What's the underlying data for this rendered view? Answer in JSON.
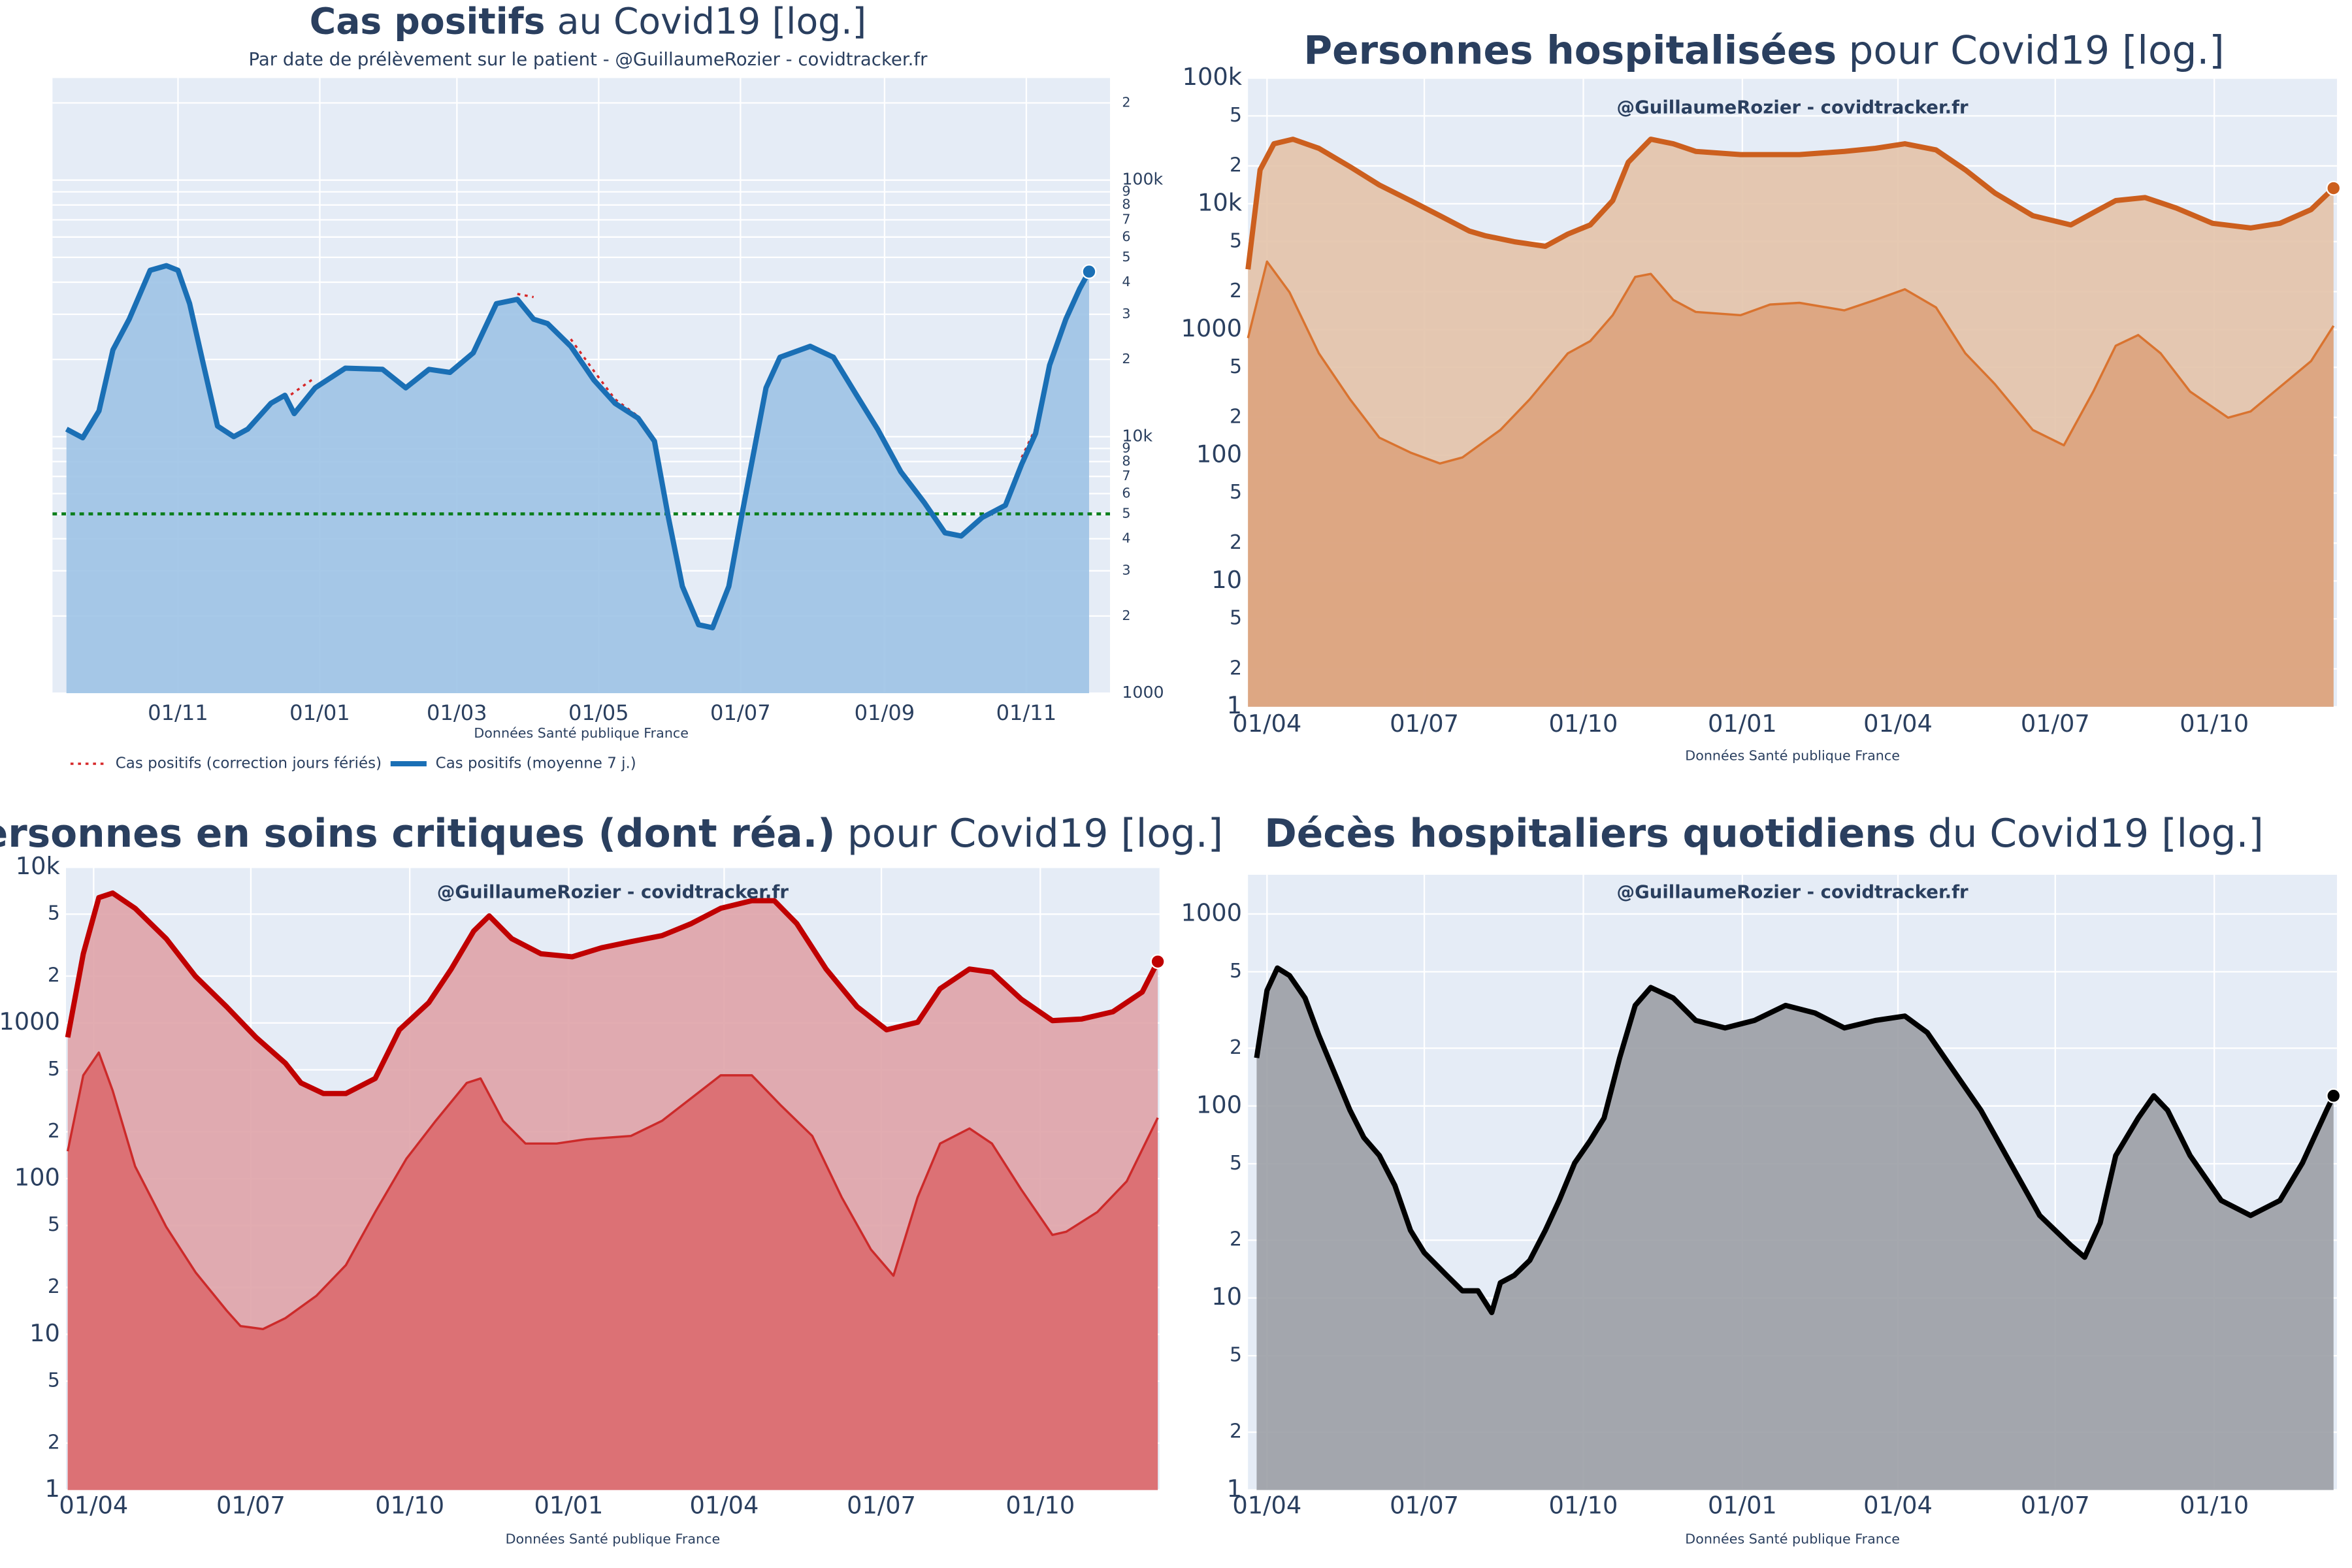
{
  "chart_data": [
    {
      "type": "area",
      "title_bold": "Cas positifs",
      "title": "au Covid19 [log.]",
      "subtitle": "Par date de prélèvement sur le patient - @GuillaumeRozier - covidtracker.fr",
      "source": "Données Santé publique France",
      "log_y": true,
      "grid": true,
      "yaxis_side": "right",
      "legend": "bottom-left",
      "xlim": [
        -54,
        401
      ],
      "xticks": [
        {
          "value": 0,
          "label": "01/11"
        },
        {
          "value": 61,
          "label": "01/01"
        },
        {
          "value": 120,
          "label": "01/03"
        },
        {
          "value": 181,
          "label": "01/05"
        },
        {
          "value": 242,
          "label": "01/07"
        },
        {
          "value": 304,
          "label": "01/09"
        },
        {
          "value": 365,
          "label": "01/11"
        }
      ],
      "ylim": [
        1000,
        250000
      ],
      "yticks": [
        1000,
        {
          "value": 2000,
          "label": "2"
        },
        {
          "value": 3000,
          "label": "3"
        },
        {
          "value": 4000,
          "label": "4"
        },
        {
          "value": 5000,
          "label": "5"
        },
        {
          "value": 6000,
          "label": "6"
        },
        {
          "value": 7000,
          "label": "7"
        },
        {
          "value": 8000,
          "label": "8"
        },
        {
          "value": 9000,
          "label": "9"
        },
        {
          "value": 10000,
          "label": "10k"
        },
        {
          "value": 20000,
          "label": "2"
        },
        {
          "value": 30000,
          "label": "3"
        },
        {
          "value": 40000,
          "label": "4"
        },
        {
          "value": 50000,
          "label": "5"
        },
        {
          "value": 60000,
          "label": "6"
        },
        {
          "value": 70000,
          "label": "7"
        },
        {
          "value": 80000,
          "label": "8"
        },
        {
          "value": 90000,
          "label": "9"
        },
        {
          "value": 100000,
          "label": "100k"
        },
        {
          "value": 200000,
          "label": "2"
        }
      ],
      "hline": {
        "value": 5000,
        "color": "#0a7d1a",
        "dash": "dot"
      },
      "series": [
        {
          "name": "Cas positifs (correction jours fériés)",
          "color": "#d62728",
          "width": 1.5,
          "dash": "dot",
          "x": [
            -48,
            -41,
            -34,
            -28,
            -21,
            -12,
            -5,
            0,
            5,
            11,
            17,
            24,
            30,
            40,
            46,
            50,
            59,
            72,
            88,
            98,
            108,
            117,
            127,
            137,
            146,
            153,
            159,
            169,
            179,
            188,
            198,
            205,
            211,
            217,
            224,
            230,
            237,
            243,
            253,
            259,
            272,
            282,
            292,
            301,
            311,
            321,
            330,
            337,
            346,
            356,
            363,
            369,
            375,
            382,
            388,
            392
          ],
          "values": [
            null,
            null,
            null,
            null,
            null,
            null,
            null,
            null,
            null,
            null,
            null,
            null,
            null,
            null,
            14000,
            14900,
            17000,
            null,
            null,
            null,
            null,
            null,
            null,
            null,
            36000,
            35000,
            null,
            24000,
            18000,
            14000,
            12000,
            null,
            null,
            null,
            null,
            null,
            null,
            null,
            null,
            null,
            null,
            null,
            null,
            null,
            null,
            null,
            null,
            null,
            null,
            null,
            8300,
            10800,
            null,
            null,
            null,
            null
          ]
        },
        {
          "name": "Cas positifs (moyenne 7 j.)",
          "color": "#1a6fb5",
          "fill": "#9dc3e6",
          "width": 3.5,
          "marker_end": true,
          "x": [
            -48,
            -41,
            -34,
            -28,
            -21,
            -12,
            -5,
            0,
            5,
            11,
            17,
            24,
            30,
            40,
            46,
            50,
            59,
            72,
            88,
            98,
            108,
            117,
            127,
            137,
            146,
            153,
            159,
            169,
            179,
            188,
            198,
            205,
            211,
            217,
            224,
            230,
            237,
            243,
            253,
            259,
            272,
            282,
            292,
            301,
            311,
            321,
            330,
            337,
            346,
            356,
            363,
            369,
            375,
            382,
            388,
            392
          ],
          "values": [
            10700,
            9900,
            12600,
            21800,
            28700,
            44500,
            46400,
            44500,
            33000,
            19000,
            11000,
            10000,
            10700,
            13500,
            14500,
            12300,
            15500,
            18500,
            18300,
            15500,
            18300,
            17800,
            21200,
            33000,
            34300,
            28700,
            27600,
            22500,
            16600,
            13500,
            11800,
            9600,
            4840,
            2610,
            1850,
            1800,
            2610,
            5180,
            15500,
            20400,
            22500,
            20400,
            14500,
            10700,
            7300,
            5550,
            4220,
            4100,
            4840,
            5400,
            7810,
            10300,
            19000,
            28700,
            37800,
            44000
          ]
        }
      ]
    },
    {
      "type": "area",
      "title_bold": "Personnes hospitalisées",
      "title": "pour Covid19 [log.]",
      "annotation": "@GuillaumeRozier - covidtracker.fr",
      "source": "Données Santé publique France",
      "log_y": true,
      "grid": true,
      "yaxis_side": "left",
      "xlim": [
        -11,
        619
      ],
      "xticks": [
        {
          "value": 0,
          "label": "01/04"
        },
        {
          "value": 91,
          "label": "01/07"
        },
        {
          "value": 183,
          "label": "01/10"
        },
        {
          "value": 275,
          "label": "01/01"
        },
        {
          "value": 365,
          "label": "01/04"
        },
        {
          "value": 456,
          "label": "01/07"
        },
        {
          "value": 548,
          "label": "01/10"
        }
      ],
      "ylim": [
        1,
        100000
      ],
      "yticks": [
        1,
        2,
        5,
        10,
        {
          "value": 20,
          "label": "2"
        },
        {
          "value": 50,
          "label": "5"
        },
        100,
        {
          "value": 200,
          "label": "2"
        },
        {
          "value": 500,
          "label": "5"
        },
        1000,
        {
          "value": 2000,
          "label": "2"
        },
        {
          "value": 5000,
          "label": "5"
        },
        {
          "value": 10000,
          "label": "10k"
        },
        {
          "value": 20000,
          "label": "2"
        },
        {
          "value": 50000,
          "label": "5"
        },
        {
          "value": 100000,
          "label": "100k"
        }
      ],
      "series": [
        {
          "color": "#cc5f1e",
          "fill": "#e3c3aa",
          "width": 3.5,
          "marker_end": true,
          "x": [
            -11,
            -4,
            4,
            15,
            30,
            48,
            65,
            83,
            100,
            117,
            126,
            143,
            161,
            174,
            187,
            200,
            209,
            222,
            235,
            248,
            274,
            308,
            334,
            352,
            369,
            387,
            404,
            421,
            443,
            465,
            478,
            491,
            508,
            526,
            547,
            569,
            586,
            604,
            617
          ],
          "values": [
            3010,
            18600,
            30000,
            32600,
            27600,
            19700,
            14100,
            10600,
            8040,
            6070,
            5580,
            4990,
            4590,
            5740,
            6790,
            10600,
            21400,
            32600,
            30000,
            26100,
            24600,
            24600,
            26100,
            27600,
            30000,
            26800,
            18600,
            12200,
            8040,
            6790,
            8500,
            10600,
            11200,
            9250,
            6990,
            6420,
            6990,
            8990,
            13300
          ]
        },
        {
          "color": "#d9732f",
          "fill": "#dba37e",
          "width": 1.5,
          "x": [
            -11,
            0,
            13,
            30,
            48,
            65,
            83,
            100,
            113,
            135,
            152,
            174,
            187,
            200,
            213,
            222,
            235,
            248,
            274,
            291,
            308,
            334,
            352,
            369,
            387,
            404,
            421,
            443,
            461,
            478,
            491,
            504,
            517,
            534,
            556,
            569,
            586,
            604,
            617
          ],
          "values": [
            855,
            3470,
            1980,
            646,
            279,
            138,
            105,
            86,
            96,
            159,
            279,
            646,
            809,
            1300,
            2620,
            2770,
            1720,
            1380,
            1300,
            1580,
            1630,
            1420,
            1720,
            2090,
            1500,
            646,
            369,
            159,
            120,
            321,
            743,
            904,
            646,
            321,
            199,
            223,
            349,
            561,
            1070
          ]
        }
      ]
    },
    {
      "type": "area",
      "title_bold": "Personnes en soins critiques (dont réa.)",
      "title": "pour Covid19 [log.]",
      "annotation": "@GuillaumeRozier - covidtracker.fr",
      "source": "Données Santé publique France",
      "log_y": true,
      "grid": true,
      "yaxis_side": "left",
      "xlim": [
        -16,
        617
      ],
      "xticks": [
        {
          "value": 0,
          "label": "01/04"
        },
        {
          "value": 91,
          "label": "01/07"
        },
        {
          "value": 183,
          "label": "01/10"
        },
        {
          "value": 275,
          "label": "01/01"
        },
        {
          "value": 365,
          "label": "01/04"
        },
        {
          "value": 456,
          "label": "01/07"
        },
        {
          "value": 548,
          "label": "01/10"
        }
      ],
      "ylim": [
        1,
        10000
      ],
      "yticks": [
        1,
        2,
        5,
        10,
        {
          "value": 20,
          "label": "2"
        },
        {
          "value": 50,
          "label": "5"
        },
        100,
        {
          "value": 200,
          "label": "2"
        },
        {
          "value": 500,
          "label": "5"
        },
        1000,
        {
          "value": 2000,
          "label": "2"
        },
        {
          "value": 5000,
          "label": "5"
        },
        {
          "value": 10000,
          "label": "10k"
        }
      ],
      "series": [
        {
          "color": "#c00000",
          "fill": "#dfa3a8",
          "width": 3.5,
          "marker_end": true,
          "x": [
            -15,
            -6,
            3,
            11,
            24,
            42,
            59,
            77,
            94,
            111,
            120,
            133,
            146,
            163,
            177,
            194,
            207,
            220,
            229,
            242,
            259,
            277,
            294,
            311,
            329,
            346,
            363,
            381,
            394,
            407,
            424,
            442,
            459,
            477,
            490,
            507,
            520,
            537,
            555,
            572,
            590,
            607,
            616
          ],
          "values": [
            808,
            2780,
            6380,
            6830,
            5450,
            3480,
            1990,
            1270,
            808,
            551,
            412,
            352,
            352,
            440,
            904,
            1350,
            2220,
            3890,
            4870,
            3480,
            2780,
            2660,
            3040,
            3330,
            3640,
            4350,
            5450,
            6100,
            6100,
            4350,
            2220,
            1270,
            904,
            1010,
            1660,
            2220,
            2120,
            1420,
            1035,
            1060,
            1180,
            1580,
            2480
          ]
        },
        {
          "color": "#cc2a2a",
          "fill": "#dc6a6f",
          "width": 1.5,
          "x": [
            -15,
            -6,
            3,
            11,
            24,
            42,
            59,
            77,
            85,
            98,
            111,
            129,
            146,
            163,
            181,
            198,
            216,
            224,
            237,
            250,
            268,
            285,
            311,
            329,
            346,
            363,
            381,
            398,
            416,
            433,
            450,
            463,
            477,
            490,
            507,
            520,
            537,
            555,
            563,
            581,
            598,
            616
          ],
          "values": [
            150,
            461,
            645,
            368,
            120,
            49,
            25,
            14.2,
            11.3,
            10.8,
            12.7,
            17.7,
            27.8,
            61,
            134,
            235,
            412,
            440,
            235,
            168,
            168,
            179,
            188,
            235,
            329,
            461,
            461,
            294,
            188,
            76,
            35,
            23.8,
            76,
            168,
            210,
            168,
            85,
            43.5,
            45.6,
            61,
            96,
            246
          ]
        }
      ]
    },
    {
      "type": "area",
      "title_bold": "Décès hospitaliers quotidiens",
      "title": "du Covid19 [log.]",
      "annotation": "@GuillaumeRozier - covidtracker.fr",
      "source": "Données Santé publique France",
      "log_y": true,
      "grid": true,
      "yaxis_side": "left",
      "xlim": [
        -11,
        619
      ],
      "xticks": [
        {
          "value": 0,
          "label": "01/04"
        },
        {
          "value": 91,
          "label": "01/07"
        },
        {
          "value": 183,
          "label": "01/10"
        },
        {
          "value": 275,
          "label": "01/01"
        },
        {
          "value": 365,
          "label": "01/04"
        },
        {
          "value": 456,
          "label": "01/07"
        },
        {
          "value": 548,
          "label": "01/10"
        }
      ],
      "ylim": [
        1,
        1600
      ],
      "yticks": [
        1,
        2,
        5,
        10,
        {
          "value": 20,
          "label": "2"
        },
        {
          "value": 50,
          "label": "5"
        },
        100,
        {
          "value": 200,
          "label": "2"
        },
        {
          "value": 500,
          "label": "5"
        },
        1000
      ],
      "series": [
        {
          "color": "#000000",
          "fill": "#9b9ea5",
          "width": 3.5,
          "marker_end": true,
          "x": [
            -6,
            0,
            6,
            13,
            22,
            30,
            39,
            48,
            56,
            65,
            74,
            83,
            91,
            104,
            113,
            122,
            130,
            135,
            143,
            152,
            161,
            169,
            178,
            187,
            195,
            204,
            213,
            222,
            235,
            248,
            265,
            282,
            300,
            317,
            334,
            352,
            369,
            382,
            395,
            413,
            430,
            447,
            465,
            473,
            482,
            491,
            504,
            513,
            521,
            534,
            552,
            569,
            586,
            599,
            613,
            617
          ],
          "values": [
            178,
            400,
            523,
            478,
            365,
            233,
            149,
            95,
            68.5,
            55.2,
            38.5,
            22.5,
            17.2,
            13.1,
            10.9,
            10.9,
            8.4,
            12,
            13.1,
            15.7,
            22.5,
            32.2,
            50.5,
            66.1,
            86.6,
            178,
            334,
            414,
            365,
            279,
            255,
            279,
            334,
            305,
            255,
            279,
            294,
            241,
            163,
            95,
            50.5,
            26.9,
            18.8,
            16.3,
            24.6,
            55.2,
            86.6,
            113,
            95,
            55.2,
            32.2,
            26.9,
            32.2,
            50.5,
            95,
            113
          ]
        }
      ]
    }
  ]
}
